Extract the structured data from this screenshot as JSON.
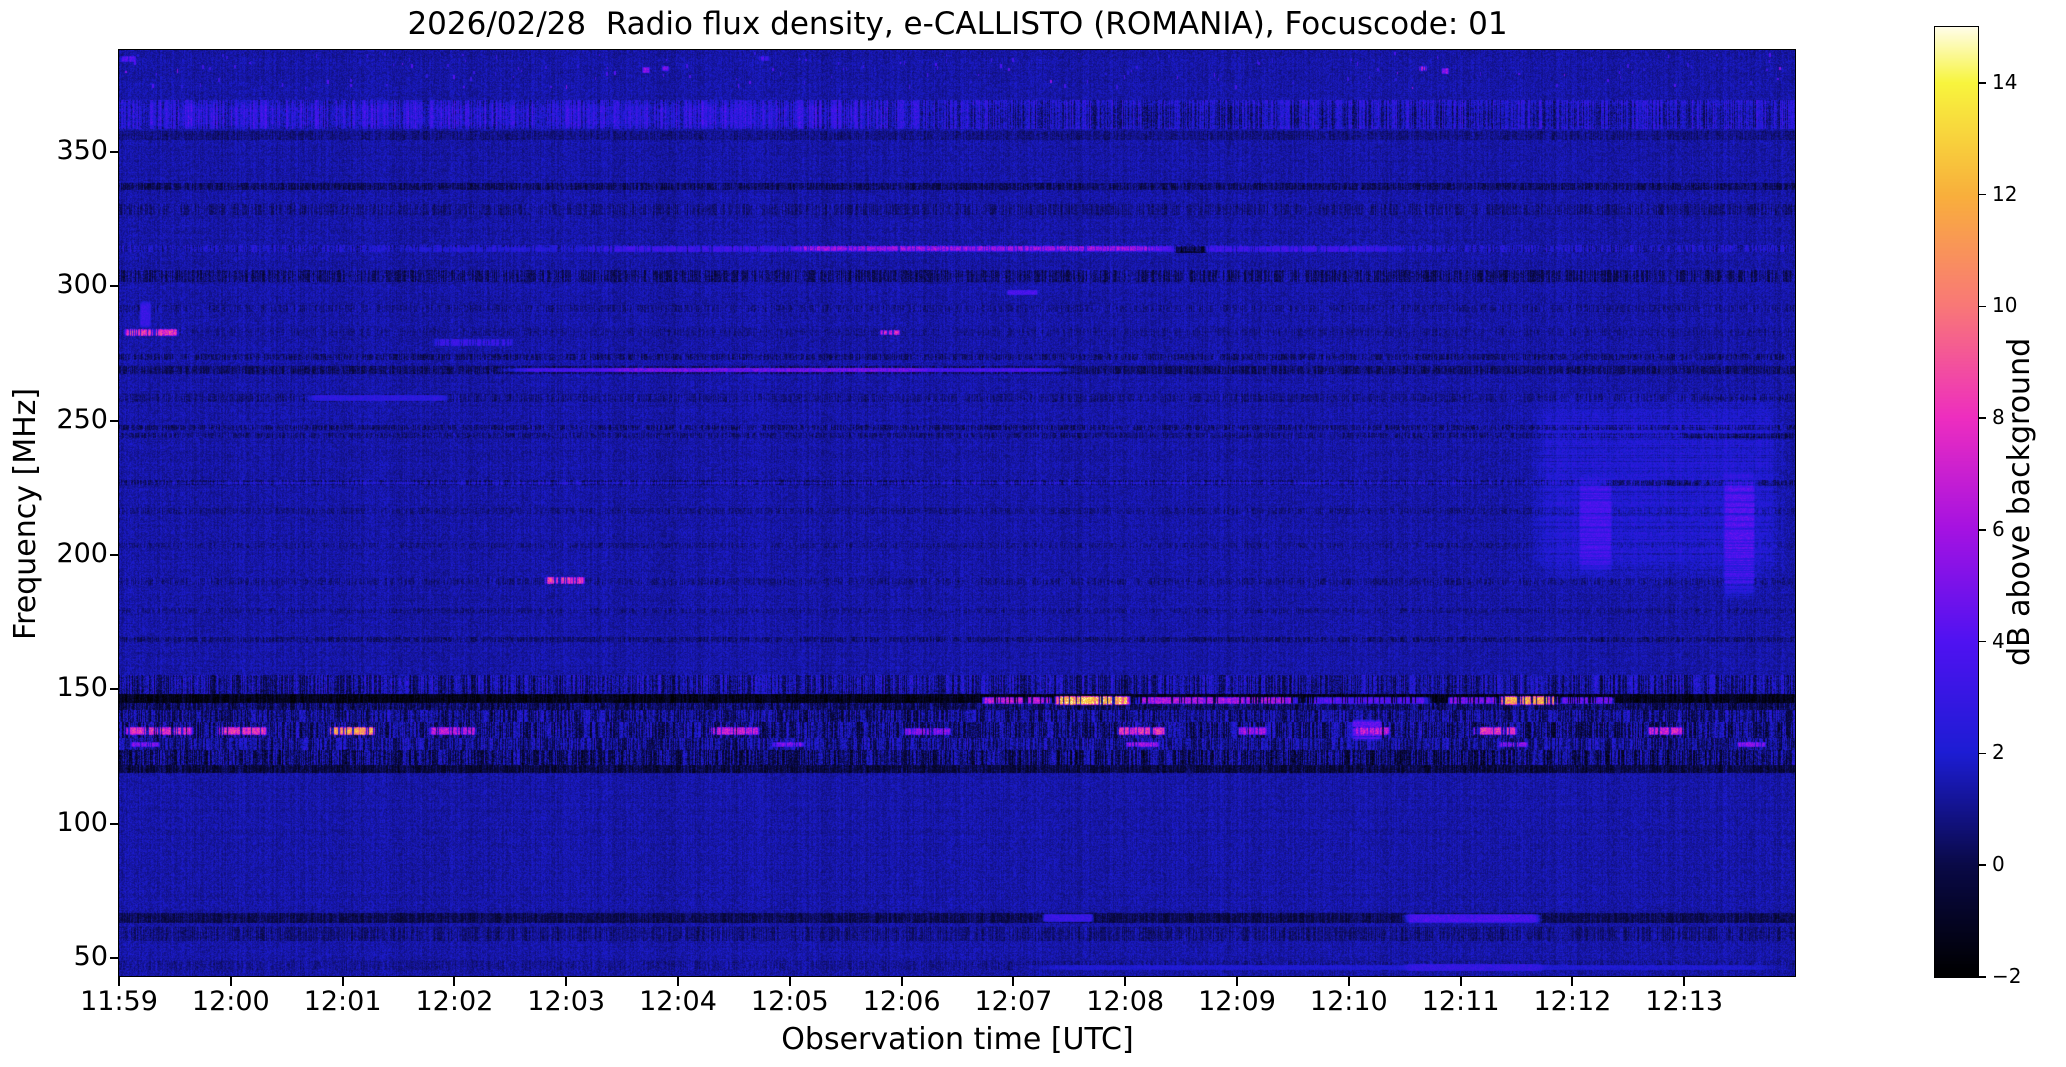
{
  "chart_data": {
    "type": "heatmap",
    "title": "2026/02/28  Radio flux density, e-CALLISTO (ROMANIA), Focuscode: 01",
    "xlabel": "Observation time [UTC]",
    "ylabel": "Frequency [MHz]",
    "x_tick_labels": [
      "11:59",
      "12:00",
      "12:01",
      "12:02",
      "12:03",
      "12:04",
      "12:05",
      "12:06",
      "12:07",
      "12:08",
      "12:09",
      "12:10",
      "12:11",
      "12:12",
      "12:13"
    ],
    "x_range_utc": [
      "11:59:00",
      "12:14:00"
    ],
    "y_tick_values": [
      350,
      300,
      250,
      200,
      150,
      100,
      50
    ],
    "y_range_mhz": [
      43,
      388
    ],
    "grid": false,
    "colorbar": {
      "label": "dB above background",
      "tick_labels": [
        "14",
        "12",
        "10",
        "8",
        "6",
        "4",
        "2",
        "0",
        "−2"
      ],
      "tick_values": [
        14,
        12,
        10,
        8,
        6,
        4,
        2,
        0,
        -2
      ],
      "min": -2,
      "max": 15
    },
    "colormap_stops": [
      {
        "value": -2,
        "color": "#000000"
      },
      {
        "value": 0,
        "color": "#0a0a48"
      },
      {
        "value": 2,
        "color": "#1d1dd4"
      },
      {
        "value": 4,
        "color": "#5012f2"
      },
      {
        "value": 6,
        "color": "#a512e2"
      },
      {
        "value": 8,
        "color": "#ee2ec0"
      },
      {
        "value": 10,
        "color": "#f97878"
      },
      {
        "value": 12,
        "color": "#f9b03c"
      },
      {
        "value": 14,
        "color": "#f8f53e"
      },
      {
        "value": 15,
        "color": "#fffde8"
      }
    ],
    "background_level_db": 1.35,
    "bands_key": "[freq_lo_MHz, freq_hi_MHz, level_offset_dB, speckle_amp_dB] — horizontal interference/noise lanes",
    "bands": [
      [
        358.5,
        369.5,
        0.5,
        1.5
      ],
      [
        354.5,
        358,
        -0.5,
        0.5
      ],
      [
        336,
        338.5,
        -0.9,
        0.9
      ],
      [
        326.5,
        330.5,
        -0.3,
        0.8
      ],
      [
        313,
        315.5,
        0.3,
        1.1
      ],
      [
        301.5,
        306,
        -0.6,
        1.2
      ],
      [
        290.5,
        293,
        -0.25,
        0.7
      ],
      [
        281.4,
        284.6,
        -0.2,
        0.5
      ],
      [
        272.5,
        275,
        -0.5,
        1.0
      ],
      [
        267.5,
        270.5,
        -0.8,
        0.9
      ],
      [
        257,
        260,
        -0.3,
        0.7
      ],
      [
        246.5,
        248.5,
        -0.5,
        1.0
      ],
      [
        243.5,
        245.5,
        -0.4,
        0.8
      ],
      [
        226,
        228,
        -0.5,
        1.0
      ],
      [
        215.5,
        217.5,
        -0.3,
        0.6
      ],
      [
        202.5,
        204.5,
        -0.3,
        0.6
      ],
      [
        189,
        191.5,
        -0.3,
        0.7
      ],
      [
        178.5,
        180.5,
        -0.3,
        0.6
      ],
      [
        167.5,
        169.5,
        -0.6,
        0.8
      ],
      [
        148.5,
        155.5,
        -0.2,
        1.7
      ],
      [
        145,
        148.2,
        -2.6,
        0.9
      ],
      [
        142.5,
        145,
        -1.0,
        1.3
      ],
      [
        138,
        142.5,
        -0.45,
        1.7
      ],
      [
        132,
        138,
        -0.55,
        1.9
      ],
      [
        127.5,
        132,
        -0.3,
        1.6
      ],
      [
        122,
        127.5,
        -0.8,
        1.9
      ],
      [
        119,
        122,
        -1.5,
        1.0
      ],
      [
        63,
        67,
        -1.2,
        0.7
      ],
      [
        56.5,
        61.5,
        -0.45,
        0.8
      ],
      [
        45.5,
        49,
        -0.2,
        0.5
      ]
    ],
    "features_key": "[t0_s_after_1159, t1_s, freq_lo_MHz, freq_hi_MHz, peak_dB, mode(s=set,a=add), dash(0=none,1=time-dashed,2=freq-dashed)]",
    "features": [
      [
        150,
        235,
        313,
        315,
        2.2,
        "s",
        1
      ],
      [
        235,
        700,
        312.9,
        315.3,
        3.4,
        "s",
        1
      ],
      [
        355,
        565,
        313.1,
        315.3,
        5.9,
        "s",
        1
      ],
      [
        566,
        584,
        312.5,
        315.5,
        -3.0,
        "a",
        0
      ],
      [
        0,
        420,
        359,
        368.5,
        0.7,
        "a",
        1
      ],
      [
        430,
        900,
        358.8,
        368.3,
        -0.55,
        "a",
        1
      ],
      [
        2,
        32,
        281.4,
        284.6,
        8.4,
        "s",
        1
      ],
      [
        11,
        17,
        284.6,
        295,
        3.1,
        "s",
        0
      ],
      [
        168,
        212,
        278,
        280.9,
        3.2,
        "s",
        1
      ],
      [
        100,
        178,
        257.4,
        259.9,
        2.6,
        "s",
        0
      ],
      [
        200,
        515,
        268,
        270,
        3.7,
        "s",
        0
      ],
      [
        258,
        438,
        268.2,
        269.9,
        4.7,
        "s",
        0
      ],
      [
        408,
        419,
        282,
        284.3,
        7.6,
        "s",
        1
      ],
      [
        476,
        493,
        297,
        299.2,
        3.7,
        "s",
        0
      ],
      [
        228,
        250,
        189.4,
        192.2,
        8.2,
        "s",
        1
      ],
      [
        501,
        543,
        144.3,
        147.9,
        12.8,
        "s",
        1
      ],
      [
        462,
        501,
        144.5,
        147.6,
        6.8,
        "s",
        1
      ],
      [
        543,
        635,
        144.5,
        147.6,
        6.3,
        "s",
        1
      ],
      [
        635,
        705,
        144.6,
        147.4,
        4.2,
        "s",
        1
      ],
      [
        740,
        773,
        144.3,
        147.9,
        11.8,
        "s",
        1
      ],
      [
        712,
        740,
        144.5,
        147.5,
        5.3,
        "s",
        1
      ],
      [
        773,
        803,
        144.5,
        147.5,
        4.7,
        "s",
        1
      ],
      [
        2,
        40,
        133,
        136.5,
        8.0,
        "s",
        1
      ],
      [
        52,
        80,
        133,
        136.5,
        8.2,
        "s",
        1
      ],
      [
        112,
        138,
        133,
        136.6,
        11.4,
        "s",
        1
      ],
      [
        166,
        192,
        133,
        136.4,
        6.6,
        "s",
        1
      ],
      [
        316,
        344,
        133,
        136.4,
        7.0,
        "s",
        1
      ],
      [
        420,
        447,
        133.2,
        136.2,
        5.4,
        "s",
        1
      ],
      [
        535,
        562,
        133,
        136.5,
        8.0,
        "s",
        1
      ],
      [
        600,
        616,
        133.2,
        136.3,
        6.2,
        "s",
        1
      ],
      [
        663,
        682,
        133,
        136.4,
        7.0,
        "s",
        1
      ],
      [
        726,
        750,
        133,
        136.5,
        8.2,
        "s",
        1
      ],
      [
        820,
        840,
        133.2,
        136.4,
        7.2,
        "s",
        1
      ],
      [
        6,
        22,
        128.6,
        130.8,
        5.2,
        "s",
        1
      ],
      [
        350,
        368,
        128.6,
        130.8,
        5.0,
        "s",
        1
      ],
      [
        540,
        558,
        128.5,
        130.8,
        6.0,
        "s",
        1
      ],
      [
        740,
        756,
        128.6,
        130.8,
        5.6,
        "s",
        1
      ],
      [
        868,
        884,
        128.6,
        130.8,
        5.4,
        "s",
        1
      ],
      [
        661,
        678,
        131,
        139.5,
        4.4,
        "s",
        2
      ],
      [
        783,
        801,
        192,
        230,
        2.9,
        "s",
        2
      ],
      [
        861,
        878,
        183,
        232,
        3.3,
        "s",
        2
      ],
      [
        755,
        895,
        188,
        262,
        0.9,
        "a",
        2
      ],
      [
        495,
        523,
        63.6,
        66.9,
        3.1,
        "s",
        0
      ],
      [
        688,
        764,
        63.2,
        67,
        3.7,
        "s",
        0
      ],
      [
        480,
        900,
        45.7,
        47.9,
        2.1,
        "s",
        0
      ],
      [
        688,
        766,
        45.4,
        48.1,
        2.9,
        "s",
        0
      ],
      [
        0,
        790,
        226.4,
        227.7,
        1.4,
        "a",
        0
      ],
      [
        790,
        900,
        225.9,
        228.1,
        -1.0,
        "a",
        1
      ],
      [
        838,
        900,
        243.4,
        245.6,
        -1.1,
        "a",
        1
      ],
      [
        847,
        897,
        257.8,
        259.3,
        -1.0,
        "a",
        1
      ],
      [
        0,
        9,
        383.5,
        386,
        4.2,
        "s",
        1
      ],
      [
        343,
        349,
        384,
        386.2,
        4.0,
        "s",
        1
      ],
      [
        280,
        285,
        379.5,
        382,
        5.5,
        "s",
        1
      ],
      [
        291,
        295,
        380,
        382.5,
        5.0,
        "s",
        1
      ],
      [
        697,
        702,
        380,
        382.5,
        6.5,
        "s",
        1
      ],
      [
        709,
        714,
        379,
        381.5,
        6.0,
        "s",
        1
      ]
    ],
    "sparse_dots": {
      "count": 150,
      "freq_lo": 374,
      "freq_hi": 387,
      "min_db": 2.0,
      "max_db": 4.2
    }
  }
}
